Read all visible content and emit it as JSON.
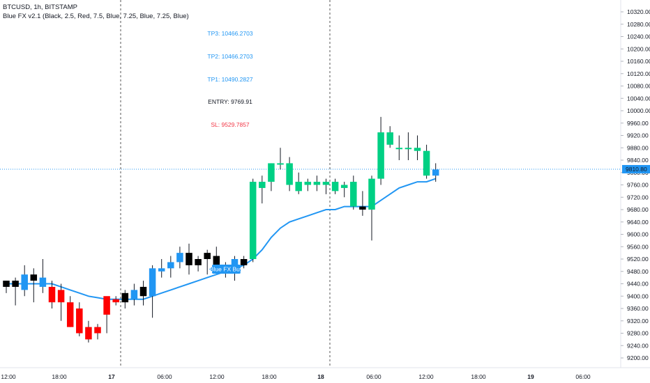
{
  "header": {
    "symbol_line": "BTCUSD, 1h, BITSTAMP",
    "indicator_line": "Blue FX v2.1 (Black, 2.5, Red, 7.5, Blue, 7.25, Blue, 7.25, Blue)"
  },
  "levels": [
    {
      "label": "TP3: 10466.2703",
      "color": "#2196f3"
    },
    {
      "label": "TP2: 10466.2703",
      "color": "#2196f3"
    },
    {
      "label": "TP1: 10490.2827",
      "color": "#2196f3"
    },
    {
      "label": "ENTRY: 9769.91",
      "color": "#131722"
    },
    {
      "label": "SL: 9529.7857",
      "color": "#f23645"
    }
  ],
  "signal": {
    "label": "Blue FX Buy"
  },
  "price_label": {
    "value": "9810.80",
    "color": "#2196f3"
  },
  "colors": {
    "bull": "#00d084",
    "bear": "#ff0000",
    "neutral_up": "#2196f3",
    "neutral_down": "#000000",
    "ema": "#2196f3"
  },
  "chart_data": {
    "type": "candlestick",
    "title": "BTCUSD, 1h, BITSTAMP",
    "y_ticks": [
      "10320.00",
      "10280.00",
      "10240.00",
      "10200.00",
      "10160.00",
      "10120.00",
      "10080.00",
      "10040.00",
      "10000.00",
      "9960.00",
      "9920.00",
      "9880.00",
      "9840.00",
      "9800.00",
      "9760.00",
      "9720.00",
      "9680.00",
      "9640.00",
      "9600.00",
      "9560.00",
      "9520.00",
      "9480.00",
      "9440.00",
      "9400.00",
      "9360.00",
      "9320.00",
      "9280.00",
      "9240.00",
      "9200.00"
    ],
    "x_ticks": [
      "12:00",
      "18:00",
      "17",
      "06:00",
      "12:00",
      "18:00",
      "18",
      "06:00",
      "12:00",
      "18:00",
      "19",
      "06:00"
    ],
    "ylim": [
      9200,
      10320
    ],
    "day_separators": [
      "17",
      "18"
    ],
    "candles": [
      {
        "o": 9430,
        "h": 9450,
        "l": 9410,
        "c": 9450,
        "k": "neutral_down"
      },
      {
        "o": 9430,
        "h": 9460,
        "l": 9370,
        "c": 9450,
        "k": "neutral_down"
      },
      {
        "o": 9420,
        "h": 9500,
        "l": 9400,
        "c": 9470,
        "k": "neutral_up"
      },
      {
        "o": 9470,
        "h": 9490,
        "l": 9380,
        "c": 9450,
        "k": "neutral_down"
      },
      {
        "o": 9460,
        "h": 9520,
        "l": 9410,
        "c": 9430,
        "k": "neutral_up"
      },
      {
        "o": 9430,
        "h": 9450,
        "l": 9360,
        "c": 9380,
        "k": "bear"
      },
      {
        "o": 9420,
        "h": 9440,
        "l": 9320,
        "c": 9380,
        "k": "bear"
      },
      {
        "o": 9380,
        "h": 9400,
        "l": 9300,
        "c": 9300,
        "k": "bear"
      },
      {
        "o": 9360,
        "h": 9380,
        "l": 9270,
        "c": 9280,
        "k": "bear"
      },
      {
        "o": 9300,
        "h": 9320,
        "l": 9250,
        "c": 9260,
        "k": "bear"
      },
      {
        "o": 9280,
        "h": 9310,
        "l": 9260,
        "c": 9300,
        "k": "bear"
      },
      {
        "o": 9340,
        "h": 9390,
        "l": 9280,
        "c": 9400,
        "k": "bear"
      },
      {
        "o": 9380,
        "h": 9400,
        "l": 9370,
        "c": 9390,
        "k": "bear"
      },
      {
        "o": 9380,
        "h": 9420,
        "l": 9360,
        "c": 9410,
        "k": "neutral_down"
      },
      {
        "o": 9390,
        "h": 9440,
        "l": 9370,
        "c": 9420,
        "k": "neutral_up"
      },
      {
        "o": 9400,
        "h": 9450,
        "l": 9370,
        "c": 9430,
        "k": "neutral_down"
      },
      {
        "o": 9400,
        "h": 9500,
        "l": 9330,
        "c": 9490,
        "k": "neutral_up"
      },
      {
        "o": 9480,
        "h": 9520,
        "l": 9460,
        "c": 9490,
        "k": "neutral_up"
      },
      {
        "o": 9490,
        "h": 9530,
        "l": 9460,
        "c": 9510,
        "k": "neutral_up"
      },
      {
        "o": 9510,
        "h": 9560,
        "l": 9490,
        "c": 9540,
        "k": "neutral_up"
      },
      {
        "o": 9540,
        "h": 9570,
        "l": 9470,
        "c": 9500,
        "k": "neutral_down"
      },
      {
        "o": 9500,
        "h": 9530,
        "l": 9480,
        "c": 9520,
        "k": "neutral_down"
      },
      {
        "o": 9520,
        "h": 9550,
        "l": 9470,
        "c": 9540,
        "k": "neutral_down"
      },
      {
        "o": 9530,
        "h": 9560,
        "l": 9490,
        "c": 9490,
        "k": "neutral_down"
      },
      {
        "o": 9490,
        "h": 9510,
        "l": 9460,
        "c": 9500,
        "k": "neutral_down"
      },
      {
        "o": 9480,
        "h": 9530,
        "l": 9450,
        "c": 9520,
        "k": "neutral_up"
      },
      {
        "o": 9520,
        "h": 9530,
        "l": 9490,
        "c": 9500,
        "k": "neutral_down"
      },
      {
        "o": 9520,
        "h": 9780,
        "l": 9510,
        "c": 9770,
        "k": "bull"
      },
      {
        "o": 9750,
        "h": 9790,
        "l": 9700,
        "c": 9770,
        "k": "bull"
      },
      {
        "o": 9770,
        "h": 9830,
        "l": 9740,
        "c": 9830,
        "k": "bull"
      },
      {
        "o": 9830,
        "h": 9880,
        "l": 9810,
        "c": 9830,
        "k": "bull"
      },
      {
        "o": 9830,
        "h": 9850,
        "l": 9740,
        "c": 9760,
        "k": "bull"
      },
      {
        "o": 9770,
        "h": 9800,
        "l": 9730,
        "c": 9740,
        "k": "bull"
      },
      {
        "o": 9760,
        "h": 9780,
        "l": 9740,
        "c": 9770,
        "k": "bull"
      },
      {
        "o": 9770,
        "h": 9790,
        "l": 9740,
        "c": 9760,
        "k": "bull"
      },
      {
        "o": 9760,
        "h": 9780,
        "l": 9730,
        "c": 9770,
        "k": "bull"
      },
      {
        "o": 9770,
        "h": 9780,
        "l": 9730,
        "c": 9740,
        "k": "bull"
      },
      {
        "o": 9750,
        "h": 9770,
        "l": 9720,
        "c": 9760,
        "k": "bull"
      },
      {
        "o": 9770,
        "h": 9790,
        "l": 9680,
        "c": 9690,
        "k": "bull"
      },
      {
        "o": 9690,
        "h": 9740,
        "l": 9660,
        "c": 9680,
        "k": "neutral_down"
      },
      {
        "o": 9680,
        "h": 9790,
        "l": 9580,
        "c": 9780,
        "k": "bull"
      },
      {
        "o": 9780,
        "h": 9980,
        "l": 9760,
        "c": 9930,
        "k": "bull"
      },
      {
        "o": 9930,
        "h": 9950,
        "l": 9880,
        "c": 9890,
        "k": "bull"
      },
      {
        "o": 9880,
        "h": 9920,
        "l": 9840,
        "c": 9880,
        "k": "bull"
      },
      {
        "o": 9880,
        "h": 9930,
        "l": 9840,
        "c": 9880,
        "k": "bull"
      },
      {
        "o": 9880,
        "h": 9920,
        "l": 9840,
        "c": 9870,
        "k": "bull"
      },
      {
        "o": 9870,
        "h": 9890,
        "l": 9780,
        "c": 9790,
        "k": "bull"
      },
      {
        "o": 9790,
        "h": 9830,
        "l": 9770,
        "c": 9810,
        "k": "neutral_up"
      }
    ],
    "ema": [
      9440,
      9440,
      9440,
      9440,
      9440,
      9440,
      9430,
      9420,
      9410,
      9400,
      9395,
      9390,
      9390,
      9390,
      9390,
      9390,
      9400,
      9410,
      9420,
      9430,
      9440,
      9450,
      9460,
      9470,
      9480,
      9490,
      9500,
      9520,
      9550,
      9590,
      9620,
      9640,
      9650,
      9660,
      9670,
      9680,
      9680,
      9690,
      9690,
      9690,
      9690,
      9710,
      9730,
      9750,
      9760,
      9770,
      9770,
      9780
    ],
    "price_line": 9810.8
  }
}
